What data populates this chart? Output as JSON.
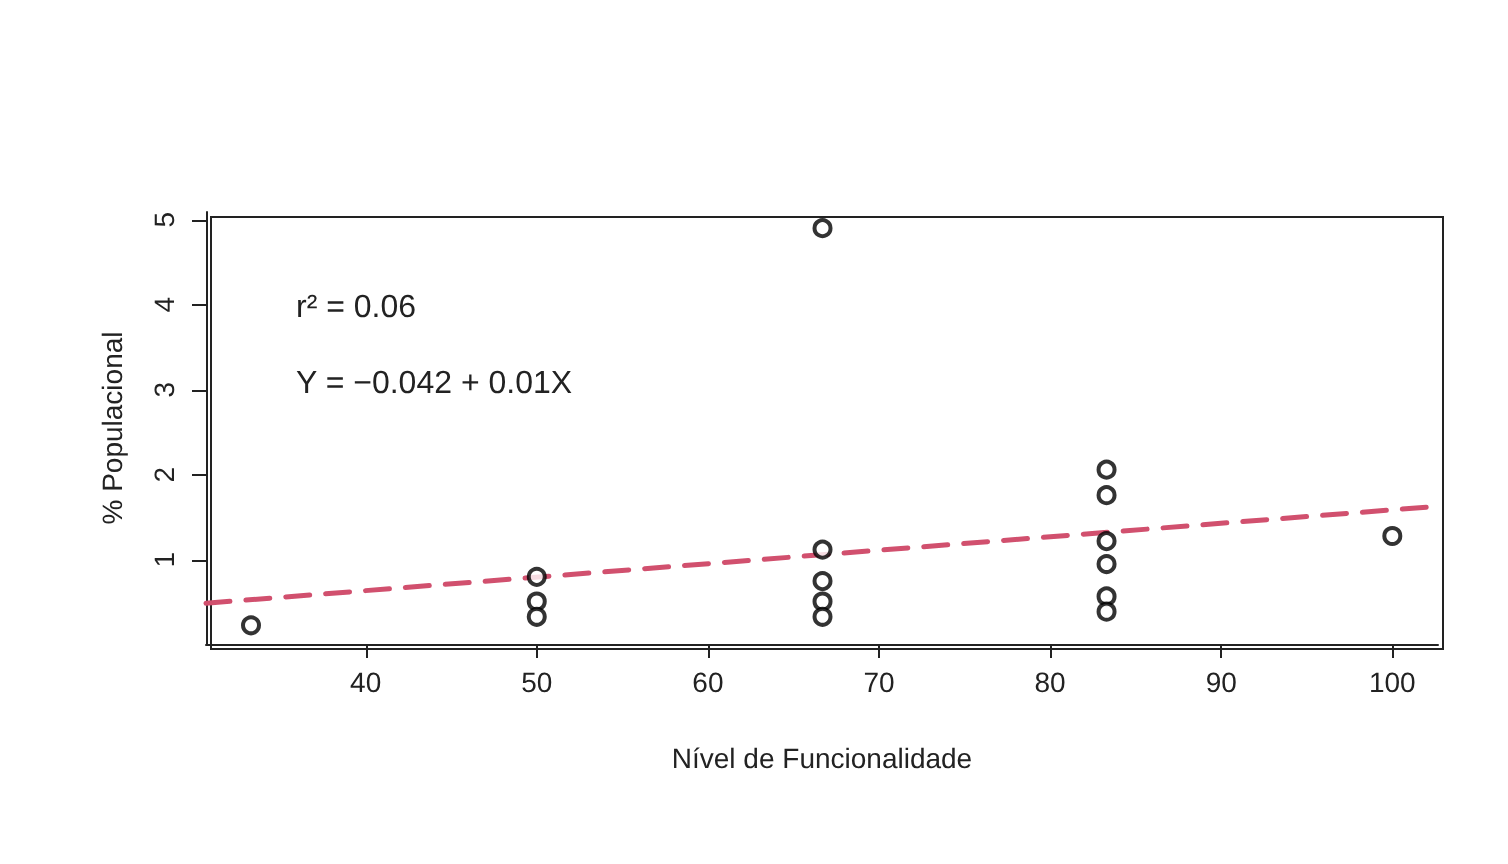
{
  "chart_data": {
    "type": "scatter",
    "xlabel": "Nível de Funcionalidade",
    "ylabel": "% Populacional",
    "annotations": [
      "r² = 0.06",
      "Y = −0.042 + 0.01X"
    ],
    "xlim": [
      30.67,
      102.67
    ],
    "xticks": [
      40,
      50,
      60,
      70,
      80,
      90,
      100
    ],
    "ylim": [
      0.01,
      5.09
    ],
    "yticks": [
      1,
      2,
      3,
      4,
      5
    ],
    "grid": false,
    "marker": "circle",
    "series": [
      {
        "color": "#000000",
        "x": [
          33.3,
          50,
          50,
          50,
          66.7,
          66.7,
          66.7,
          66.7,
          66.7,
          83.3,
          83.3,
          83.3,
          83.3,
          83.3,
          83.3,
          100
        ],
        "values": [
          0.23,
          0.8,
          0.51,
          0.33,
          4.9,
          1.12,
          0.75,
          0.51,
          0.33,
          2.06,
          1.76,
          1.22,
          0.95,
          0.57,
          0.39,
          1.28
        ]
      },
      {
        "type": "line",
        "color": "#d1506e",
        "line_style": "dashed",
        "marker": "none",
        "x": [
          30.67,
          102.67
        ],
        "values": [
          0.49,
          1.63
        ]
      }
    ]
  }
}
